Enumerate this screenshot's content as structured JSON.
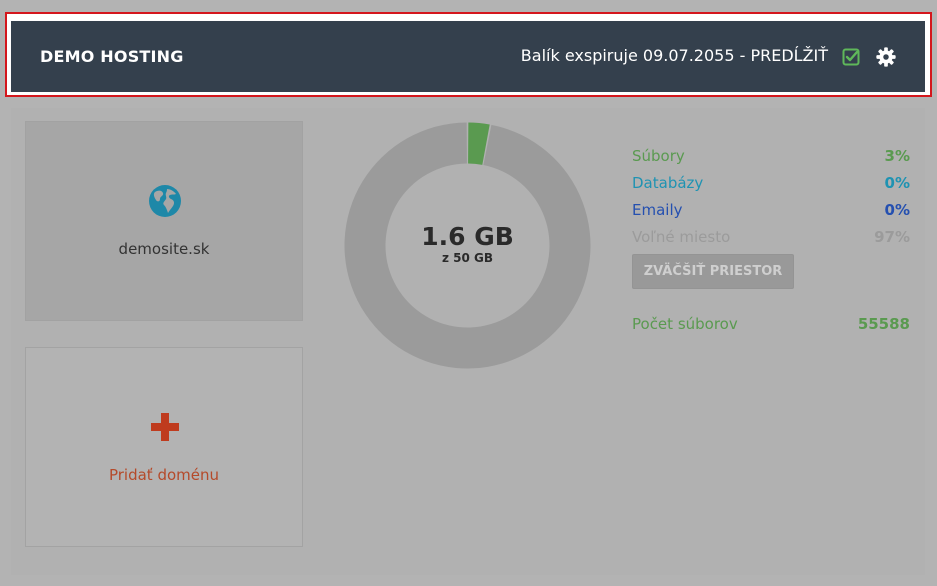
{
  "header": {
    "brand": "DEMO HOSTING",
    "expiry_text": "Balík exspiruje 09.07.2055 - PREDĹŽIŤ",
    "icons": [
      "check-square-icon",
      "gear-icon"
    ]
  },
  "domains": [
    {
      "name": "demosite.sk",
      "icon": "globe-icon"
    }
  ],
  "add_domain": {
    "label": "Pridať doménu",
    "icon": "plus-icon"
  },
  "storage": {
    "used": "1.6 GB",
    "total": "z 50 GB",
    "items": [
      {
        "label": "Súbory",
        "value": "3%",
        "percent": 3,
        "color": "#5a9a50"
      },
      {
        "label": "Databázy",
        "value": "0%",
        "percent": 0,
        "color": "#1f93b2"
      },
      {
        "label": "Emaily",
        "value": "0%",
        "percent": 0,
        "color": "#2550b0"
      },
      {
        "label": "Voľné miesto",
        "value": "97%",
        "percent": 97,
        "color": "#9b9b9b"
      }
    ],
    "enlarge_button": "ZVÄČŠIŤ PRIESTOR",
    "file_count_label": "Počet súborov",
    "file_count": "55588",
    "file_count_color": "#5a9a50"
  }
}
